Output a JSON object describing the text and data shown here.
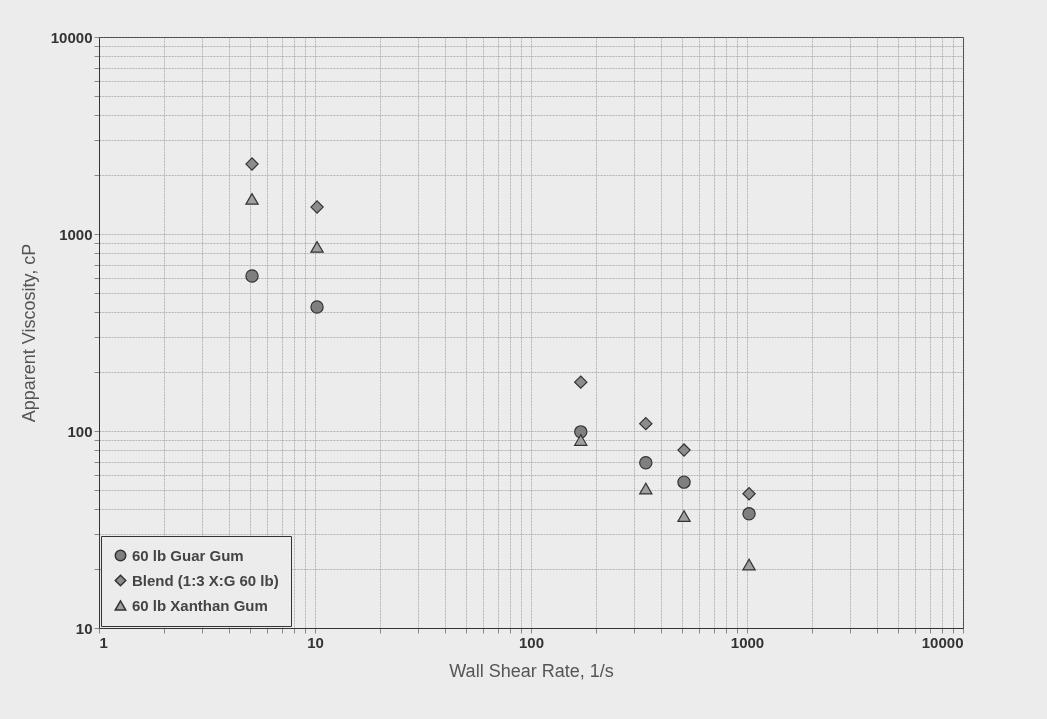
{
  "chart_data": {
    "type": "scatter",
    "xlabel": "Wall Shear Rate, 1/s",
    "ylabel": "Apparent Viscosity, cP",
    "log": "xy",
    "grid": true,
    "legend": "bottom left",
    "xlim": [
      1,
      10000
    ],
    "xticks": [
      1,
      10,
      100,
      1000,
      10000
    ],
    "ylim": [
      10,
      10000
    ],
    "yticks": [
      10,
      100,
      1000,
      10000
    ],
    "x": [
      5.11,
      10.22,
      170,
      340,
      511,
      1022
    ],
    "series": [
      {
        "name": "60 lb Guar Gum",
        "color": "#7f7f7f",
        "marker": "circle",
        "values": [
          612,
          426,
          99,
          69,
          55,
          38
        ]
      },
      {
        "name": "Blend (1:3 X:G 60 lb)",
        "color": "#8c8c8c",
        "marker": "diamond",
        "values": [
          2265,
          1370,
          177,
          109,
          80,
          48
        ]
      },
      {
        "name": "60 lb Xanthan Gum",
        "color": "#a0a0a0",
        "marker": "triangle",
        "values": [
          1507,
          860,
          90,
          51,
          37,
          21
        ]
      }
    ]
  }
}
